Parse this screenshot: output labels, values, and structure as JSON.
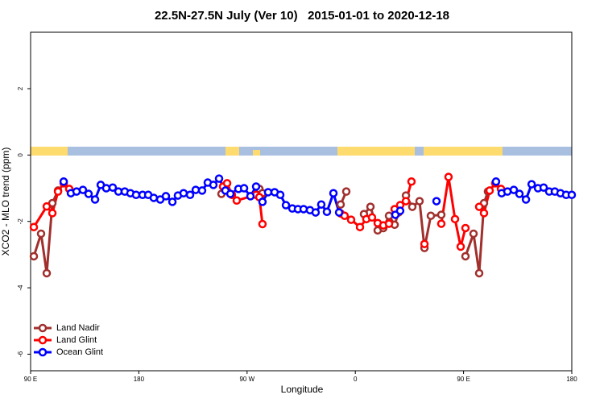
{
  "chart_data": {
    "type": "line",
    "title": "22.5N-27.5N July (Ver 10)   2015-01-01 to 2020-12-18",
    "x_label": "Longitude",
    "y_label": "XCO2 - MLO trend (ppm)",
    "xlim": [
      90,
      540
    ],
    "xticks": [
      {
        "value": 90,
        "label": "90 E"
      },
      180,
      {
        "value": 270,
        "label": "90 W"
      },
      {
        "value": 360,
        "label": "0"
      },
      {
        "value": 450,
        "label": "90 E"
      },
      {
        "value": 540,
        "label": "180"
      }
    ],
    "ylim": [
      -6.5,
      3.7
    ],
    "yticks": [
      -6,
      -4,
      -2,
      0,
      2
    ],
    "legend": "bottom-left",
    "series": [
      {
        "name": "Land Nadir",
        "color": "#a0302d",
        "x": [
          92.7,
          98.7,
          103.4,
          108.1,
          112.8,
          200,
          248.7,
          300,
          280.2,
          282.8,
          320,
          347.8,
          352.5,
          360,
          367.2,
          372.6,
          378.6,
          383.3,
          388.0,
          392.7,
          396.0,
          402.1,
          407.4,
          413.4,
          417.5,
          422.8,
          431.5,
          440,
          451.6,
          458.3,
          463.0,
          467.0,
          470.3
        ],
        "values": [
          -3.05,
          -2.37,
          -3.56,
          -1.45,
          -1.07,
          null,
          -1.17,
          null,
          -1.02,
          -1.15,
          null,
          -1.49,
          -1.1,
          null,
          -1.78,
          -1.56,
          -2.27,
          -2.2,
          -1.83,
          -2.1,
          -1.73,
          -1.22,
          -1.56,
          -1.39,
          -2.8,
          -1.83,
          -1.8,
          null,
          -3.05,
          -2.37,
          -3.56,
          -1.45,
          -1.1
        ]
      },
      {
        "name": "Land Glint",
        "color": "#ff0000",
        "x": [
          92.7,
          103.4,
          108.1,
          112.8,
          117.5,
          122.1,
          200,
          250.0,
          253.4,
          257.4,
          261.4,
          277.5,
          280.2,
          282.8,
          320,
          347.8,
          351.1,
          356.5,
          363.9,
          369.2,
          373.9,
          378.6,
          383.3,
          388.0,
          392.7,
          397.3,
          402.1,
          406.7,
          410,
          417.5,
          425,
          431.5,
          437.5,
          442.9,
          447.6,
          451.6,
          455,
          463.0,
          467.0,
          471.7,
          476.4,
          481.1
        ],
        "values": [
          -2.17,
          -1.55,
          -1.75,
          -1.1,
          -0.85,
          -1.02,
          null,
          -0.95,
          -0.85,
          -1.2,
          -1.37,
          -1.2,
          -1.27,
          -2.08,
          null,
          -1.76,
          -1.83,
          -1.95,
          -2.17,
          -1.93,
          -1.88,
          -2.05,
          -2.12,
          -2.07,
          -1.63,
          -1.51,
          -1.39,
          -0.8,
          null,
          -2.68,
          null,
          -2.07,
          -0.66,
          -1.93,
          -2.76,
          -2.2,
          null,
          -1.56,
          -1.75,
          -1.07,
          -0.85,
          -1.02
        ]
      },
      {
        "name": "Ocean Glint",
        "color": "#0000ff",
        "x": [
          117.5,
          123.5,
          128.2,
          133.5,
          138.2,
          143.6,
          148.3,
          152.9,
          158.3,
          163.0,
          168.3,
          173.0,
          177.7,
          183.1,
          187.8,
          192.4,
          197.8,
          202.5,
          207.9,
          212.5,
          217.2,
          222.6,
          227.3,
          232.6,
          237.3,
          242.0,
          246.7,
          252.0,
          256.1,
          262.8,
          267.5,
          272.8,
          277.5,
          282.8,
          287.5,
          292.9,
          297.6,
          302.3,
          307.6,
          312.3,
          317.0,
          322.3,
          327.0,
          331.7,
          336.4,
          341.8,
          346.5,
          370,
          393.3,
          397.3,
          410,
          427.5,
          450,
          477.0,
          481.7,
          486.5,
          491.8,
          496.5,
          501.9,
          506.6,
          511.9,
          516.6,
          521.2,
          525.9,
          530.6,
          535.3,
          540.0
        ],
        "values": [
          -0.8,
          -1.15,
          -1.1,
          -1.05,
          -1.17,
          -1.34,
          -0.9,
          -1.0,
          -0.98,
          -1.1,
          -1.1,
          -1.15,
          -1.2,
          -1.2,
          -1.2,
          -1.29,
          -1.34,
          -1.24,
          -1.41,
          -1.22,
          -1.15,
          -1.2,
          -1.05,
          -1.07,
          -0.83,
          -0.9,
          -0.71,
          -1.07,
          -1.17,
          -1.02,
          -1.0,
          -1.24,
          -0.95,
          -1.41,
          -1.12,
          -1.12,
          -1.2,
          -1.51,
          -1.61,
          -1.63,
          -1.63,
          -1.66,
          -1.73,
          -1.49,
          -1.71,
          -1.15,
          -1.73,
          null,
          -1.8,
          -1.68,
          null,
          -1.39,
          null,
          -0.8,
          -1.15,
          -1.1,
          -1.05,
          -1.17,
          -1.34,
          -0.88,
          -1.0,
          -0.98,
          -1.1,
          -1.1,
          -1.15,
          -1.2,
          -1.2
        ]
      }
    ]
  }
}
